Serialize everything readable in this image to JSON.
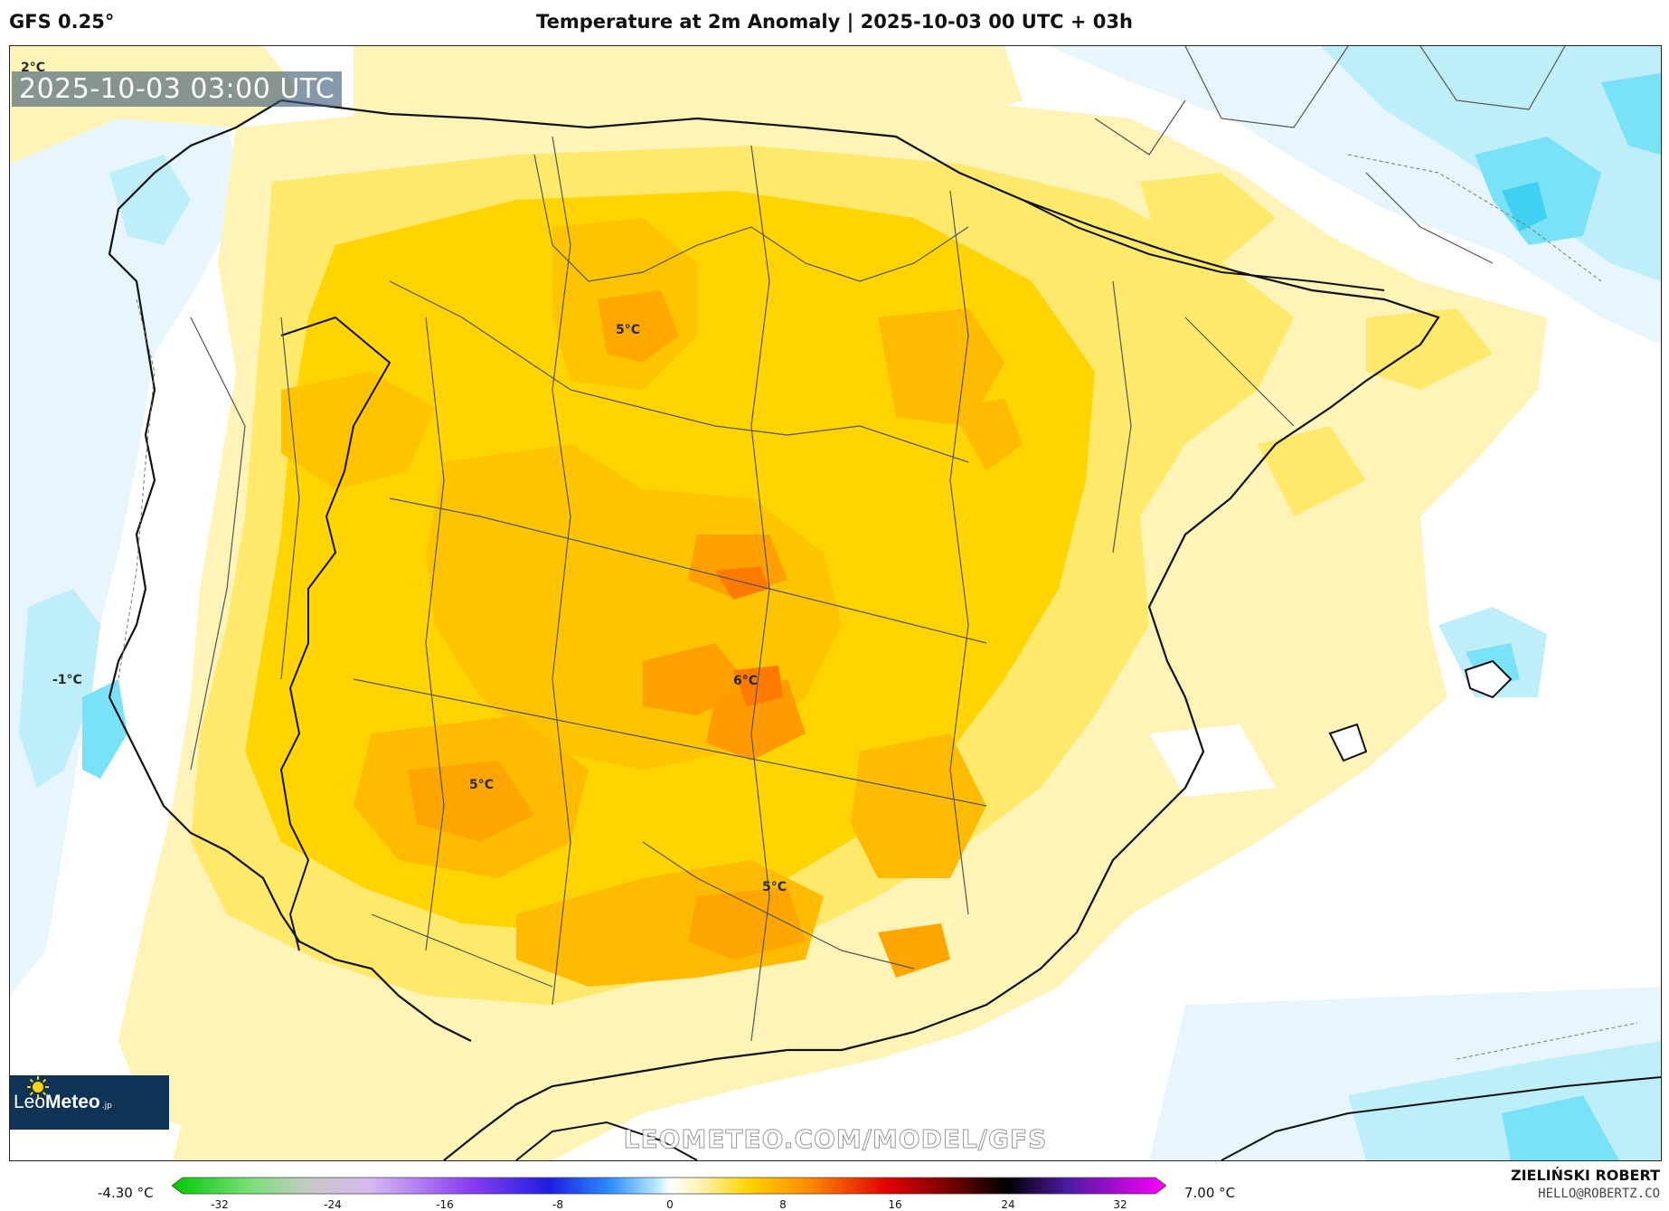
{
  "header": {
    "model": "GFS 0.25°",
    "title": "Temperature at 2m Anomaly | 2025-10-03 00 UTC + 03h"
  },
  "map": {
    "timestamp": "2025-10-03 03:00 UTC",
    "labels": [
      {
        "text": "2°C"
      },
      {
        "text": "5°C"
      },
      {
        "text": "-1°C"
      },
      {
        "text": "6°C"
      },
      {
        "text": "5°C"
      },
      {
        "text": "5°C"
      }
    ],
    "watermark": "LEOMETEO.COM/MODEL/GFS",
    "logo": {
      "brand_light": "Leo",
      "brand_bold": "Meteo",
      "suffix": ".jp"
    }
  },
  "colorbar": {
    "min_label": "-4.30 °C",
    "max_label": "7.00 °C",
    "ticks": [
      "-32",
      "-24",
      "-16",
      "-8",
      "0",
      "8",
      "16",
      "24",
      "32"
    ]
  },
  "footer": {
    "author": "ZIELIŃSKI ROBERT",
    "email": "HELLO@ROBERTZ.CO"
  },
  "colors": {
    "anomaly_neg_light": "#e6f6fc",
    "anomaly_neg": "#bfeefb",
    "anomaly_neg_strong": "#55d8f6",
    "anomaly_pos_light": "#fff4b8",
    "anomaly_pos": "#ffe96a",
    "anomaly_pos_mid": "#ffd400",
    "anomaly_pos_strong": "#ffb300",
    "anomaly_pos_max": "#ff8c00"
  }
}
